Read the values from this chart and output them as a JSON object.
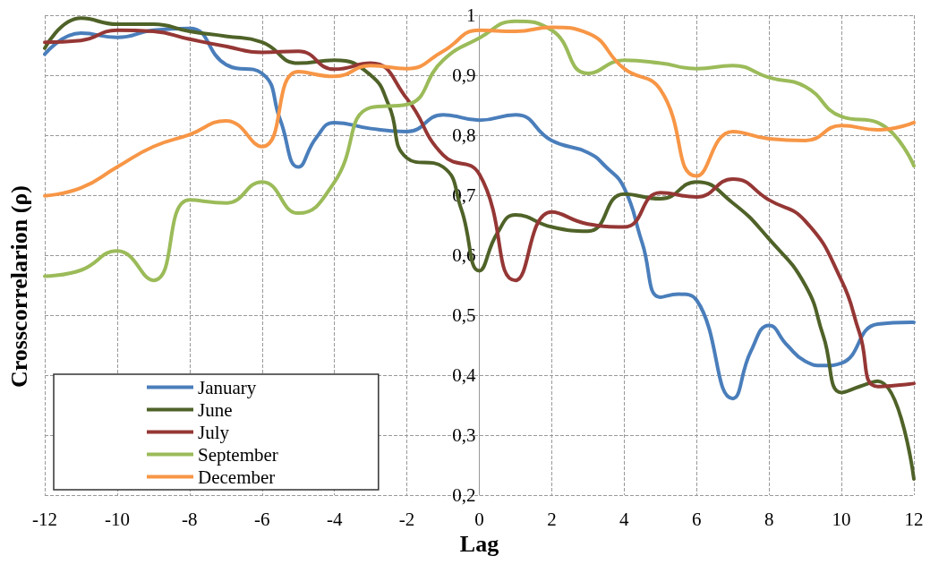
{
  "chart_data": {
    "type": "line",
    "xlabel": "Lag",
    "ylabel": "Crosscorrelarion (ρ)",
    "xlim": [
      -12,
      12
    ],
    "xticks": [
      -12,
      -10,
      -8,
      -6,
      -4,
      -2,
      0,
      2,
      4,
      6,
      8,
      10,
      12
    ],
    "ylim": [
      0.2,
      1
    ],
    "yticks": [
      {
        "value": 0.2,
        "label": "0,2"
      },
      {
        "value": 0.3,
        "label": "0,3"
      },
      {
        "value": 0.4,
        "label": "0,4"
      },
      {
        "value": 0.5,
        "label": "0,5"
      },
      {
        "value": 0.6,
        "label": "0,6"
      },
      {
        "value": 0.7,
        "label": "0,7"
      },
      {
        "value": 0.8,
        "label": "0,8"
      },
      {
        "value": 0.9,
        "label": "0,9"
      },
      1
    ],
    "grid": true,
    "legend": "bottom left",
    "marker": "none",
    "line_style": "solid",
    "series": [
      {
        "name": "January",
        "color": "#4a7ebb",
        "x": [
          -12,
          -11,
          -10,
          -9,
          -8,
          -7,
          -6,
          -5.5,
          -5,
          -4.5,
          -4,
          -3,
          -2,
          -1,
          0,
          1,
          2,
          3,
          3.5,
          4,
          4.5,
          5,
          5.5,
          6,
          7,
          7.5,
          8,
          8.5,
          9,
          9.5,
          10,
          11,
          12
        ],
        "values": [
          0.935,
          0.97,
          0.963,
          0.975,
          0.978,
          0.918,
          0.903,
          0.826,
          0.747,
          0.796,
          0.821,
          0.811,
          0.806,
          0.834,
          0.825,
          0.834,
          0.791,
          0.771,
          0.747,
          0.712,
          0.62,
          0.53,
          0.535,
          0.525,
          0.361,
          0.44,
          0.483,
          0.45,
          0.423,
          0.416,
          0.42,
          0.485,
          0.488
        ]
      },
      {
        "name": "June",
        "color": "#4f6228",
        "x": [
          -12,
          -11,
          -10,
          -9,
          -8,
          -7,
          -6,
          -5,
          -4,
          -3,
          -2.5,
          -2,
          -1,
          -0.5,
          0,
          0.5,
          1,
          2,
          3,
          4,
          5,
          6,
          7,
          8,
          9,
          9.5,
          10,
          10.5,
          11,
          12
        ],
        "values": [
          0.945,
          0.995,
          0.985,
          0.985,
          0.973,
          0.965,
          0.955,
          0.92,
          0.925,
          0.9,
          0.85,
          0.762,
          0.747,
          0.677,
          0.574,
          0.637,
          0.667,
          0.647,
          0.64,
          0.702,
          0.694,
          0.722,
          0.687,
          0.627,
          0.55,
          0.465,
          0.371,
          0.381,
          0.39,
          0.227
        ]
      },
      {
        "name": "July",
        "color": "#953735",
        "x": [
          -12,
          -11,
          -10,
          -9,
          -8,
          -7,
          -6,
          -5,
          -4,
          -3,
          -2,
          -1,
          0,
          1,
          2,
          3,
          4,
          5,
          6,
          7,
          8,
          9,
          10,
          10.5,
          11,
          12
        ],
        "values": [
          0.955,
          0.958,
          0.975,
          0.973,
          0.96,
          0.948,
          0.938,
          0.94,
          0.91,
          0.92,
          0.861,
          0.767,
          0.735,
          0.558,
          0.672,
          0.652,
          0.647,
          0.704,
          0.697,
          0.727,
          0.692,
          0.657,
          0.558,
          0.47,
          0.381,
          0.386
        ]
      },
      {
        "name": "September",
        "color": "#9bbb59",
        "x": [
          -12,
          -11,
          -10,
          -9,
          -8,
          -7,
          -6,
          -5,
          -4,
          -3,
          -2,
          -1,
          0,
          1,
          2,
          3,
          4,
          5,
          6,
          7,
          8,
          9,
          10,
          11,
          12
        ],
        "values": [
          0.565,
          0.575,
          0.607,
          0.558,
          0.692,
          0.687,
          0.722,
          0.67,
          0.722,
          0.846,
          0.851,
          0.925,
          0.962,
          0.99,
          0.975,
          0.903,
          0.925,
          0.92,
          0.911,
          0.916,
          0.896,
          0.881,
          0.831,
          0.821,
          0.749
        ]
      },
      {
        "name": "December",
        "color": "#f79646",
        "x": [
          -12,
          -11,
          -10,
          -9,
          -8,
          -7,
          -6,
          -5,
          -4,
          -3,
          -2,
          -1,
          0,
          1,
          2,
          3,
          4,
          5,
          6,
          7,
          8,
          9,
          10,
          11,
          12
        ],
        "values": [
          0.699,
          0.712,
          0.747,
          0.781,
          0.801,
          0.824,
          0.781,
          0.906,
          0.898,
          0.916,
          0.911,
          0.94,
          0.975,
          0.973,
          0.98,
          0.97,
          0.911,
          0.876,
          0.732,
          0.806,
          0.794,
          0.791,
          0.816,
          0.809,
          0.821
        ]
      }
    ]
  }
}
